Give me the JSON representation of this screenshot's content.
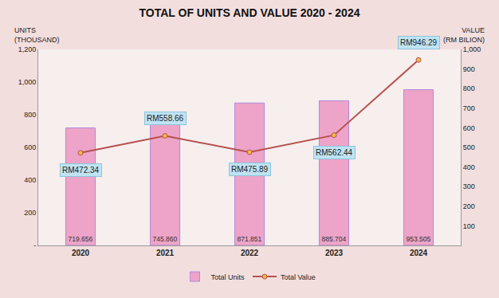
{
  "chart_data": {
    "type": "bar",
    "title": "TOTAL OF UNITS AND VALUE 2020 - 2024",
    "ylabel": "UNITS\n(THOUSAND)",
    "y2label": "VALUE\n(RM BILION)",
    "categories": [
      "2020",
      "2021",
      "2022",
      "2023",
      "2024"
    ],
    "series": [
      {
        "name": "Total Units",
        "type": "bar",
        "color": "#eda4c8",
        "values": [
          719.656,
          745.86,
          871.851,
          885.704,
          953.505
        ],
        "value_labels": [
          "719.656",
          "745.860",
          "871.851",
          "885.704",
          "953.505"
        ]
      },
      {
        "name": "Total Value",
        "type": "line",
        "axis": "y2",
        "color": "#b5524f",
        "marker": "circle",
        "values": [
          472.34,
          558.66,
          475.89,
          562.44,
          946.29
        ],
        "value_labels": [
          "RM472.34",
          "RM558.66",
          "RM475.89",
          "RM562.44",
          "RM946.29"
        ]
      }
    ],
    "ylim": [
      0,
      1200
    ],
    "yticks": [
      {
        "value": 0,
        "label": "-"
      },
      200,
      400,
      600,
      800,
      {
        "value": 1000,
        "label": "1,000"
      },
      {
        "value": 1200,
        "label": "1,200"
      }
    ],
    "y2lim": [
      0,
      1000
    ],
    "y2ticks": [
      100,
      200,
      300,
      400,
      500,
      600,
      700,
      800,
      900,
      {
        "value": 1000,
        "label": "1,000"
      }
    ],
    "data_labels": true,
    "grid": false,
    "legend": "bottom"
  }
}
